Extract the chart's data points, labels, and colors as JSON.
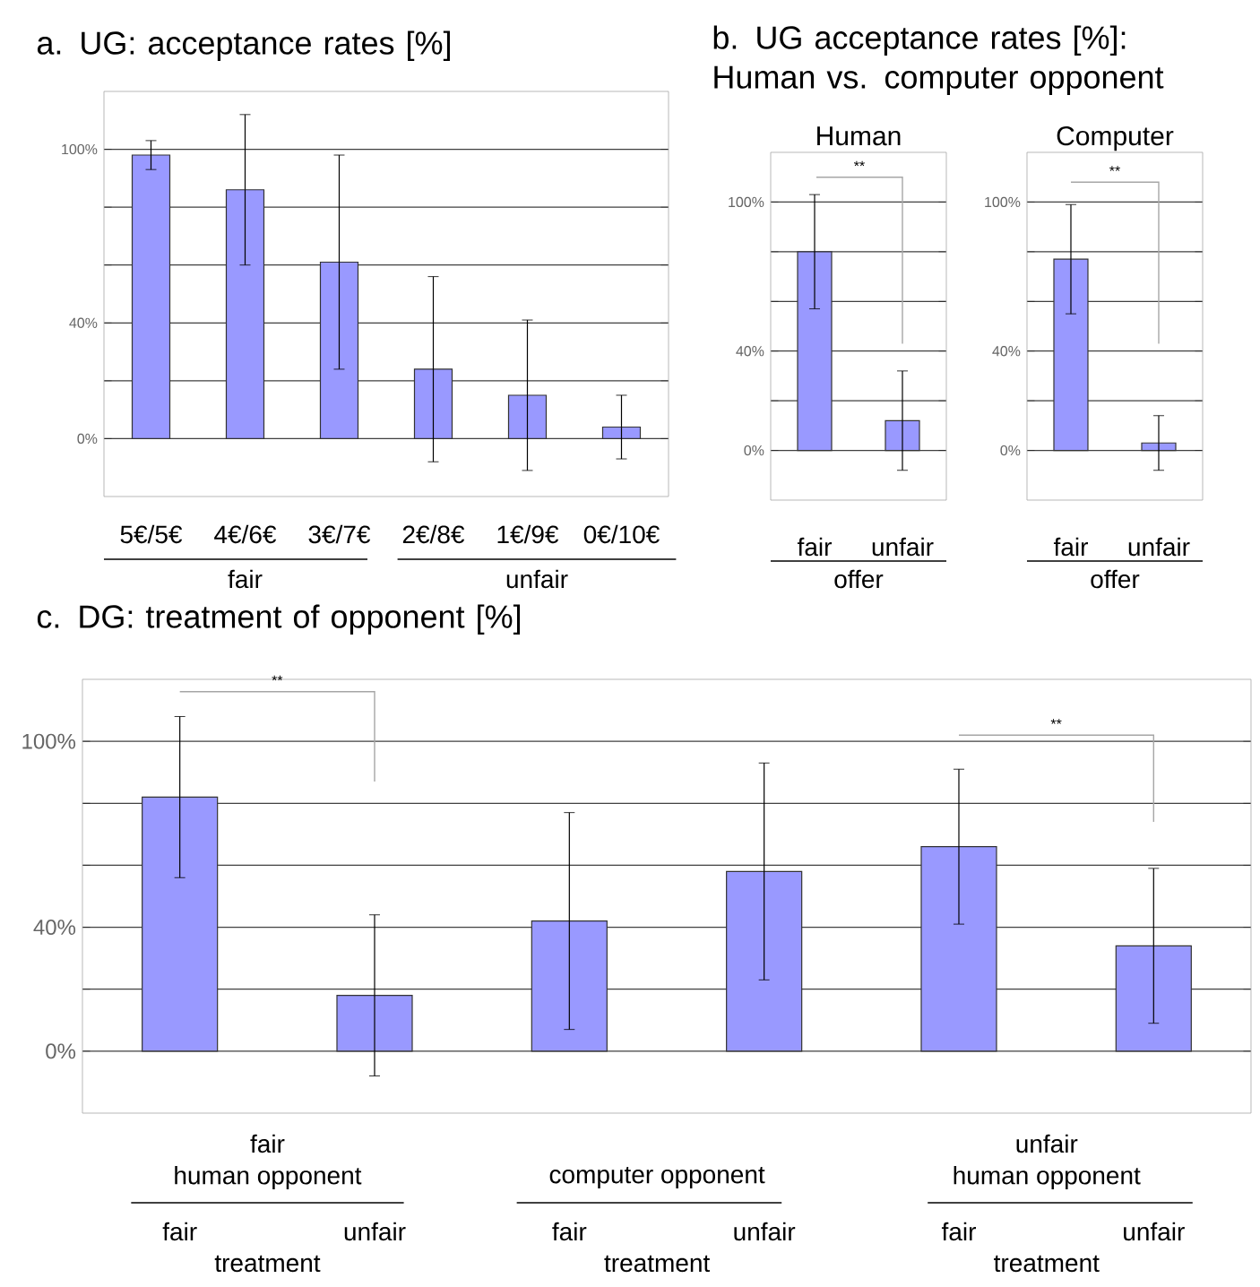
{
  "chart_data": [
    {
      "type": "bar",
      "title": "a. UG: acceptance rates [%]",
      "categories": [
        "5€/5€",
        "4€/6€",
        "3€/7€",
        "2€/8€",
        "1€/9€",
        "0€/10€"
      ],
      "values": [
        98,
        86,
        61,
        24,
        15,
        4
      ],
      "errors": [
        5,
        26,
        37,
        32,
        26,
        11
      ],
      "color": "#9999ff",
      "ylim": [
        -20,
        120
      ],
      "yticks": [
        {
          "value": 0,
          "label": "0%"
        },
        {
          "value": 20,
          "label": null
        },
        {
          "value": 40,
          "label": "40%"
        },
        {
          "value": 60,
          "label": null
        },
        {
          "value": 80,
          "label": null
        },
        {
          "value": 100,
          "label": "100%"
        }
      ],
      "grid": "y",
      "annotations": [
        "fair",
        "unfair"
      ]
    },
    {
      "type": "bar",
      "title": "b. UG acceptance rates [%]: Human vs. computer opponent",
      "subtitle": "Human",
      "xlabel": "offer",
      "categories": [
        "fair",
        "unfair"
      ],
      "values": [
        80,
        12
      ],
      "errors": [
        23,
        20
      ],
      "color": "#9999ff",
      "ylim": [
        -20,
        120
      ],
      "yticks": [
        {
          "value": 0,
          "label": "0%"
        },
        {
          "value": 20,
          "label": null
        },
        {
          "value": 40,
          "label": "40%"
        },
        {
          "value": 60,
          "label": null
        },
        {
          "value": 80,
          "label": null
        },
        {
          "value": 100,
          "label": "100%"
        }
      ],
      "grid": "y",
      "annotations": [
        "**"
      ]
    },
    {
      "type": "bar",
      "title": "Computer",
      "xlabel": "offer",
      "categories": [
        "fair",
        "unfair"
      ],
      "values": [
        77,
        3
      ],
      "errors": [
        22,
        11
      ],
      "color": "#9999ff",
      "ylim": [
        -20,
        120
      ],
      "yticks": [
        {
          "value": 0,
          "label": "0%"
        },
        {
          "value": 20,
          "label": null
        },
        {
          "value": 40,
          "label": "40%"
        },
        {
          "value": 60,
          "label": null
        },
        {
          "value": 80,
          "label": null
        },
        {
          "value": 100,
          "label": "100%"
        }
      ],
      "grid": "y",
      "annotations": [
        "**"
      ]
    },
    {
      "type": "bar",
      "title": "c. DG: treatment of opponent [%]",
      "categories": [
        "fair",
        "unfair",
        "fair",
        "unfair",
        "fair",
        "unfair"
      ],
      "values": [
        82,
        18,
        42,
        58,
        66,
        34
      ],
      "errors": [
        26,
        26,
        35,
        35,
        25,
        25
      ],
      "color": "#9999ff",
      "ylim": [
        -20,
        120
      ],
      "yticks": [
        {
          "value": 0,
          "label": "0%"
        },
        {
          "value": 20,
          "label": null
        },
        {
          "value": 40,
          "label": "40%"
        },
        {
          "value": 60,
          "label": null
        },
        {
          "value": 80,
          "label": null
        },
        {
          "value": 100,
          "label": "100%"
        }
      ],
      "grid": "y",
      "annotations": [
        "**",
        "**",
        "fair",
        "human opponent",
        "computer opponent",
        "unfair",
        "human opponent",
        "treatment",
        "treatment",
        "treatment"
      ]
    }
  ]
}
